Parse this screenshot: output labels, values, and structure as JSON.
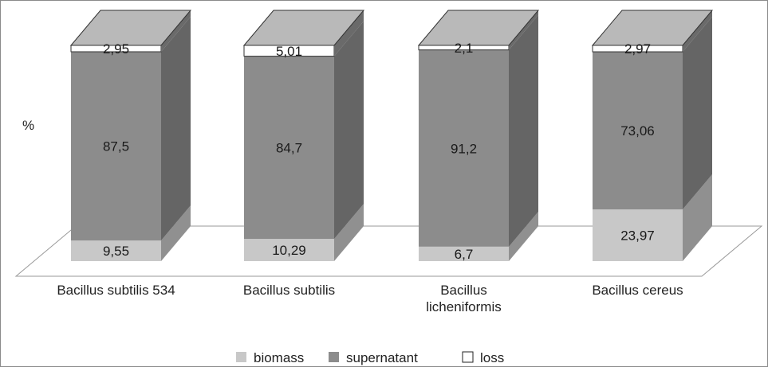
{
  "chart_data": {
    "type": "bar",
    "stacked": true,
    "three_d": true,
    "ylabel": "%",
    "categories": [
      "Bacillus subtilis 534",
      "Bacillus subtilis",
      "Bacillus\nlicheniformis",
      "Bacillus cereus"
    ],
    "series": [
      {
        "name": "biomass",
        "color": "#c8c8c8",
        "values": [
          9.55,
          10.29,
          6.7,
          23.97
        ],
        "labels": [
          "9,55",
          "10,29",
          "6,7",
          "23,97"
        ]
      },
      {
        "name": "supernatant",
        "color": "#8c8c8c",
        "values": [
          87.5,
          84.7,
          91.2,
          73.06
        ],
        "labels": [
          "87,5",
          "84,7",
          "91,2",
          "73,06"
        ]
      },
      {
        "name": "loss",
        "color": "#ffffff",
        "values": [
          2.95,
          5.01,
          2.1,
          2.97
        ],
        "labels": [
          "2,95",
          "5,01",
          "2,1",
          "2,97"
        ]
      }
    ],
    "ylim": [
      0,
      100
    ],
    "grid": false,
    "legend_position": "bottom"
  }
}
